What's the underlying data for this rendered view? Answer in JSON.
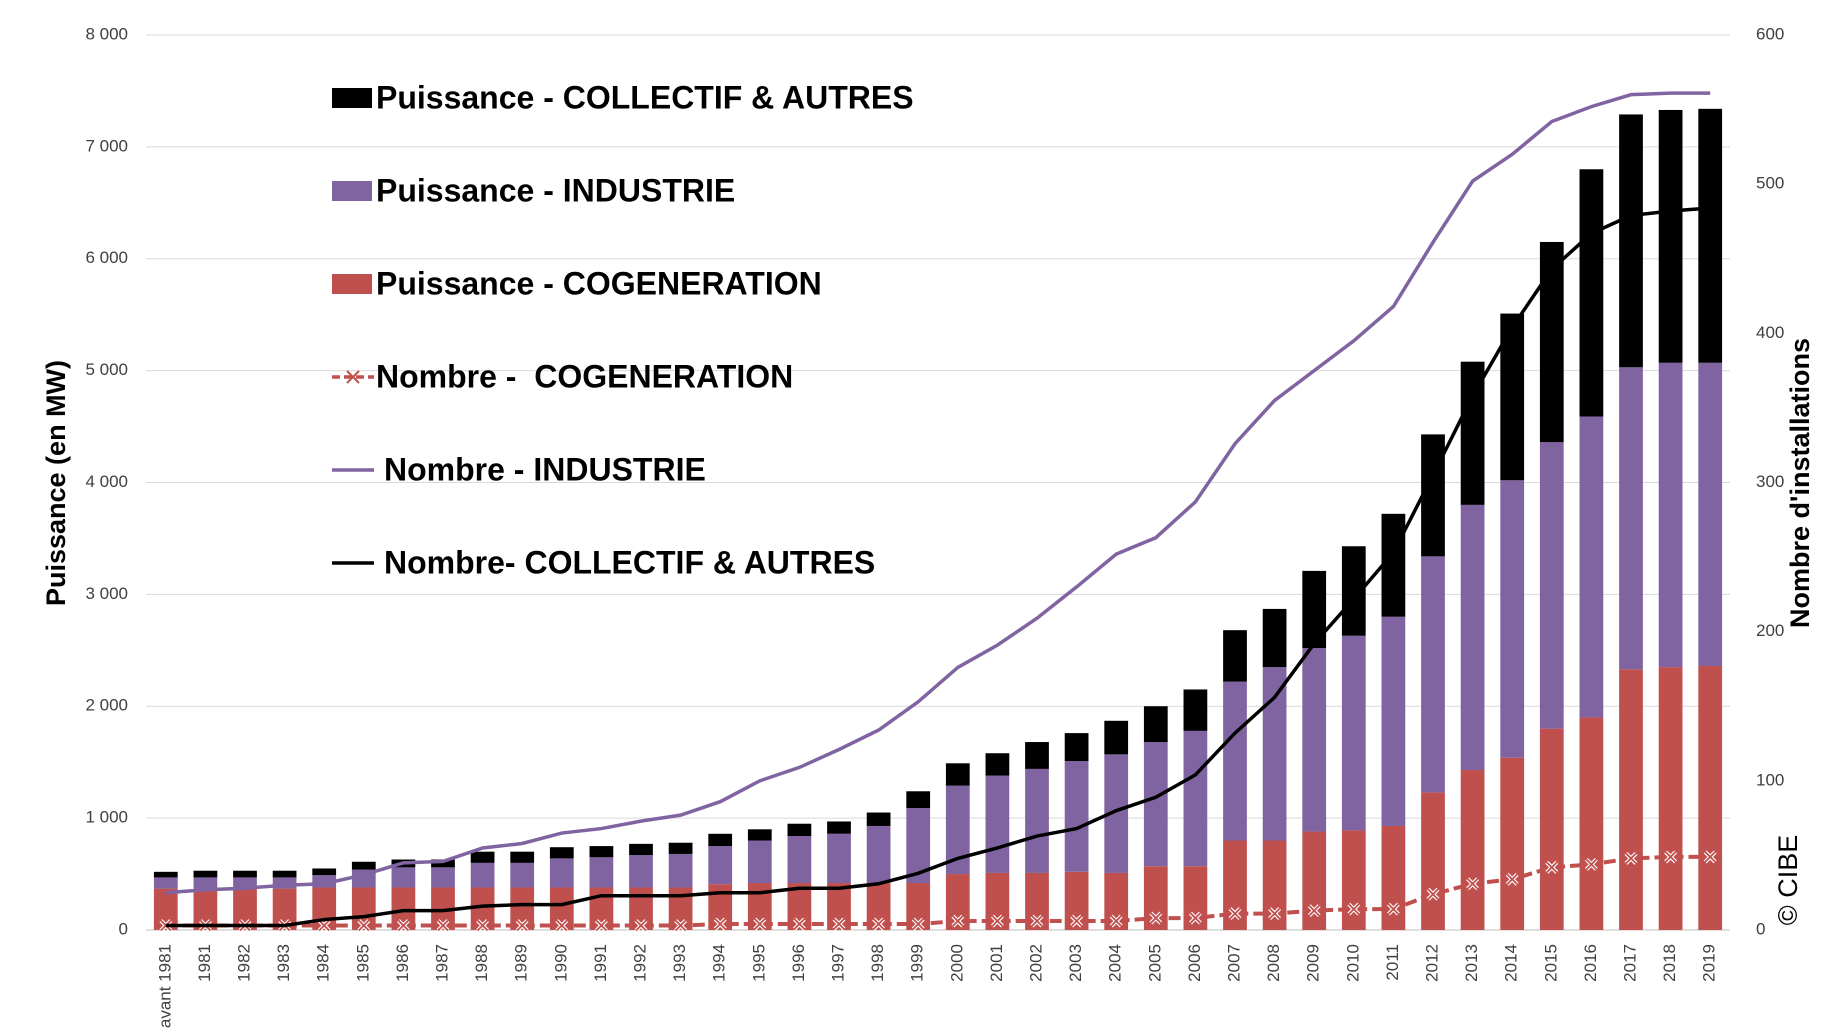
{
  "chart_data": {
    "type": "bar",
    "categories": [
      "avant 1981",
      "1981",
      "1982",
      "1983",
      "1984",
      "1985",
      "1986",
      "1987",
      "1988",
      "1989",
      "1990",
      "1991",
      "1992",
      "1993",
      "1994",
      "1995",
      "1996",
      "1997",
      "1998",
      "1999",
      "2000",
      "2001",
      "2002",
      "2003",
      "2004",
      "2005",
      "2006",
      "2007",
      "2008",
      "2009",
      "2010",
      "2011",
      "2012",
      "2013",
      "2014",
      "2015",
      "2016",
      "2017",
      "2018",
      "2019"
    ],
    "y_label": "Puissance (en MW)",
    "y2_label": "Nombre d'installations",
    "annotation": "© CIBE",
    "ylim": [
      0,
      8000
    ],
    "yticks": [
      0,
      {
        "value": 1000,
        "label": "1 000"
      },
      {
        "value": 2000,
        "label": "2 000"
      },
      {
        "value": 3000,
        "label": "3 000"
      },
      {
        "value": 4000,
        "label": "4 000"
      },
      {
        "value": 5000,
        "label": "5 000"
      },
      {
        "value": 6000,
        "label": "6 000"
      },
      {
        "value": 7000,
        "label": "7 000"
      },
      {
        "value": 8000,
        "label": "8 000"
      }
    ],
    "y2lim": [
      0,
      600
    ],
    "y2ticks": [
      0,
      100,
      200,
      300,
      400,
      500,
      600
    ],
    "grid": true,
    "legend": "upper left",
    "series": [
      {
        "name": "Puissance - COLLECTIF & AUTRES",
        "type": "bar",
        "color": "#000000",
        "values": [
          50,
          60,
          60,
          60,
          60,
          70,
          70,
          70,
          100,
          100,
          100,
          100,
          100,
          100,
          110,
          100,
          110,
          110,
          120,
          150,
          200,
          200,
          240,
          250,
          300,
          320,
          370,
          460,
          520,
          690,
          800,
          920,
          1090,
          1280,
          1490,
          1790,
          2210,
          2260,
          2260,
          2270
        ]
      },
      {
        "name": "Puissance - INDUSTRIE",
        "type": "bar",
        "color": "#8064a2",
        "values": [
          100,
          100,
          100,
          100,
          110,
          160,
          180,
          180,
          220,
          220,
          260,
          270,
          290,
          300,
          340,
          380,
          420,
          440,
          510,
          670,
          790,
          870,
          930,
          990,
          1060,
          1110,
          1210,
          1420,
          1550,
          1640,
          1740,
          1870,
          2110,
          2370,
          2480,
          2560,
          2690,
          2700,
          2720,
          2710
        ]
      },
      {
        "name": "Puissance - COGENERATION",
        "type": "bar",
        "color": "#c0504d",
        "values": [
          370,
          370,
          370,
          370,
          380,
          380,
          380,
          380,
          380,
          380,
          380,
          380,
          380,
          380,
          410,
          420,
          420,
          420,
          420,
          420,
          500,
          510,
          510,
          520,
          510,
          570,
          570,
          800,
          800,
          880,
          890,
          930,
          1230,
          1430,
          1540,
          1800,
          1900,
          2330,
          2350,
          2360
        ]
      },
      {
        "name": "Nombre -  COGENERATION",
        "type": "line",
        "axis": "y2",
        "color": "#c0504d",
        "values": [
          3,
          3,
          3,
          3,
          3,
          3,
          3,
          3,
          3,
          3,
          3,
          3,
          3,
          3,
          4,
          4,
          4,
          4,
          4,
          4,
          6,
          6,
          6,
          6,
          6,
          8,
          8,
          11,
          11,
          13,
          14,
          14,
          24,
          31,
          34,
          42,
          44,
          48,
          49,
          49
        ]
      },
      {
        "name": "Nombre - INDUSTRIE",
        "type": "line",
        "axis": "y2",
        "color": "#8064a2",
        "values": [
          25,
          27,
          28,
          30,
          31,
          37,
          45,
          46,
          55,
          58,
          65,
          68,
          73,
          77,
          86,
          100,
          109,
          121,
          134,
          153,
          176,
          191,
          209,
          230,
          252,
          263,
          287,
          326,
          355,
          375,
          395,
          418,
          461,
          502,
          520,
          542,
          552,
          560,
          561,
          561
        ]
      },
      {
        "name": "Nombre- COLLECTIF & AUTRES",
        "type": "line",
        "axis": "y2",
        "color": "#000000",
        "values": [
          3,
          3,
          3,
          3,
          7,
          9,
          13,
          13,
          16,
          17,
          17,
          23,
          23,
          23,
          25,
          25,
          28,
          28,
          31,
          38,
          48,
          55,
          63,
          68,
          80,
          89,
          104,
          132,
          156,
          192,
          222,
          253,
          305,
          358,
          404,
          443,
          467,
          479,
          482,
          484
        ]
      }
    ]
  }
}
